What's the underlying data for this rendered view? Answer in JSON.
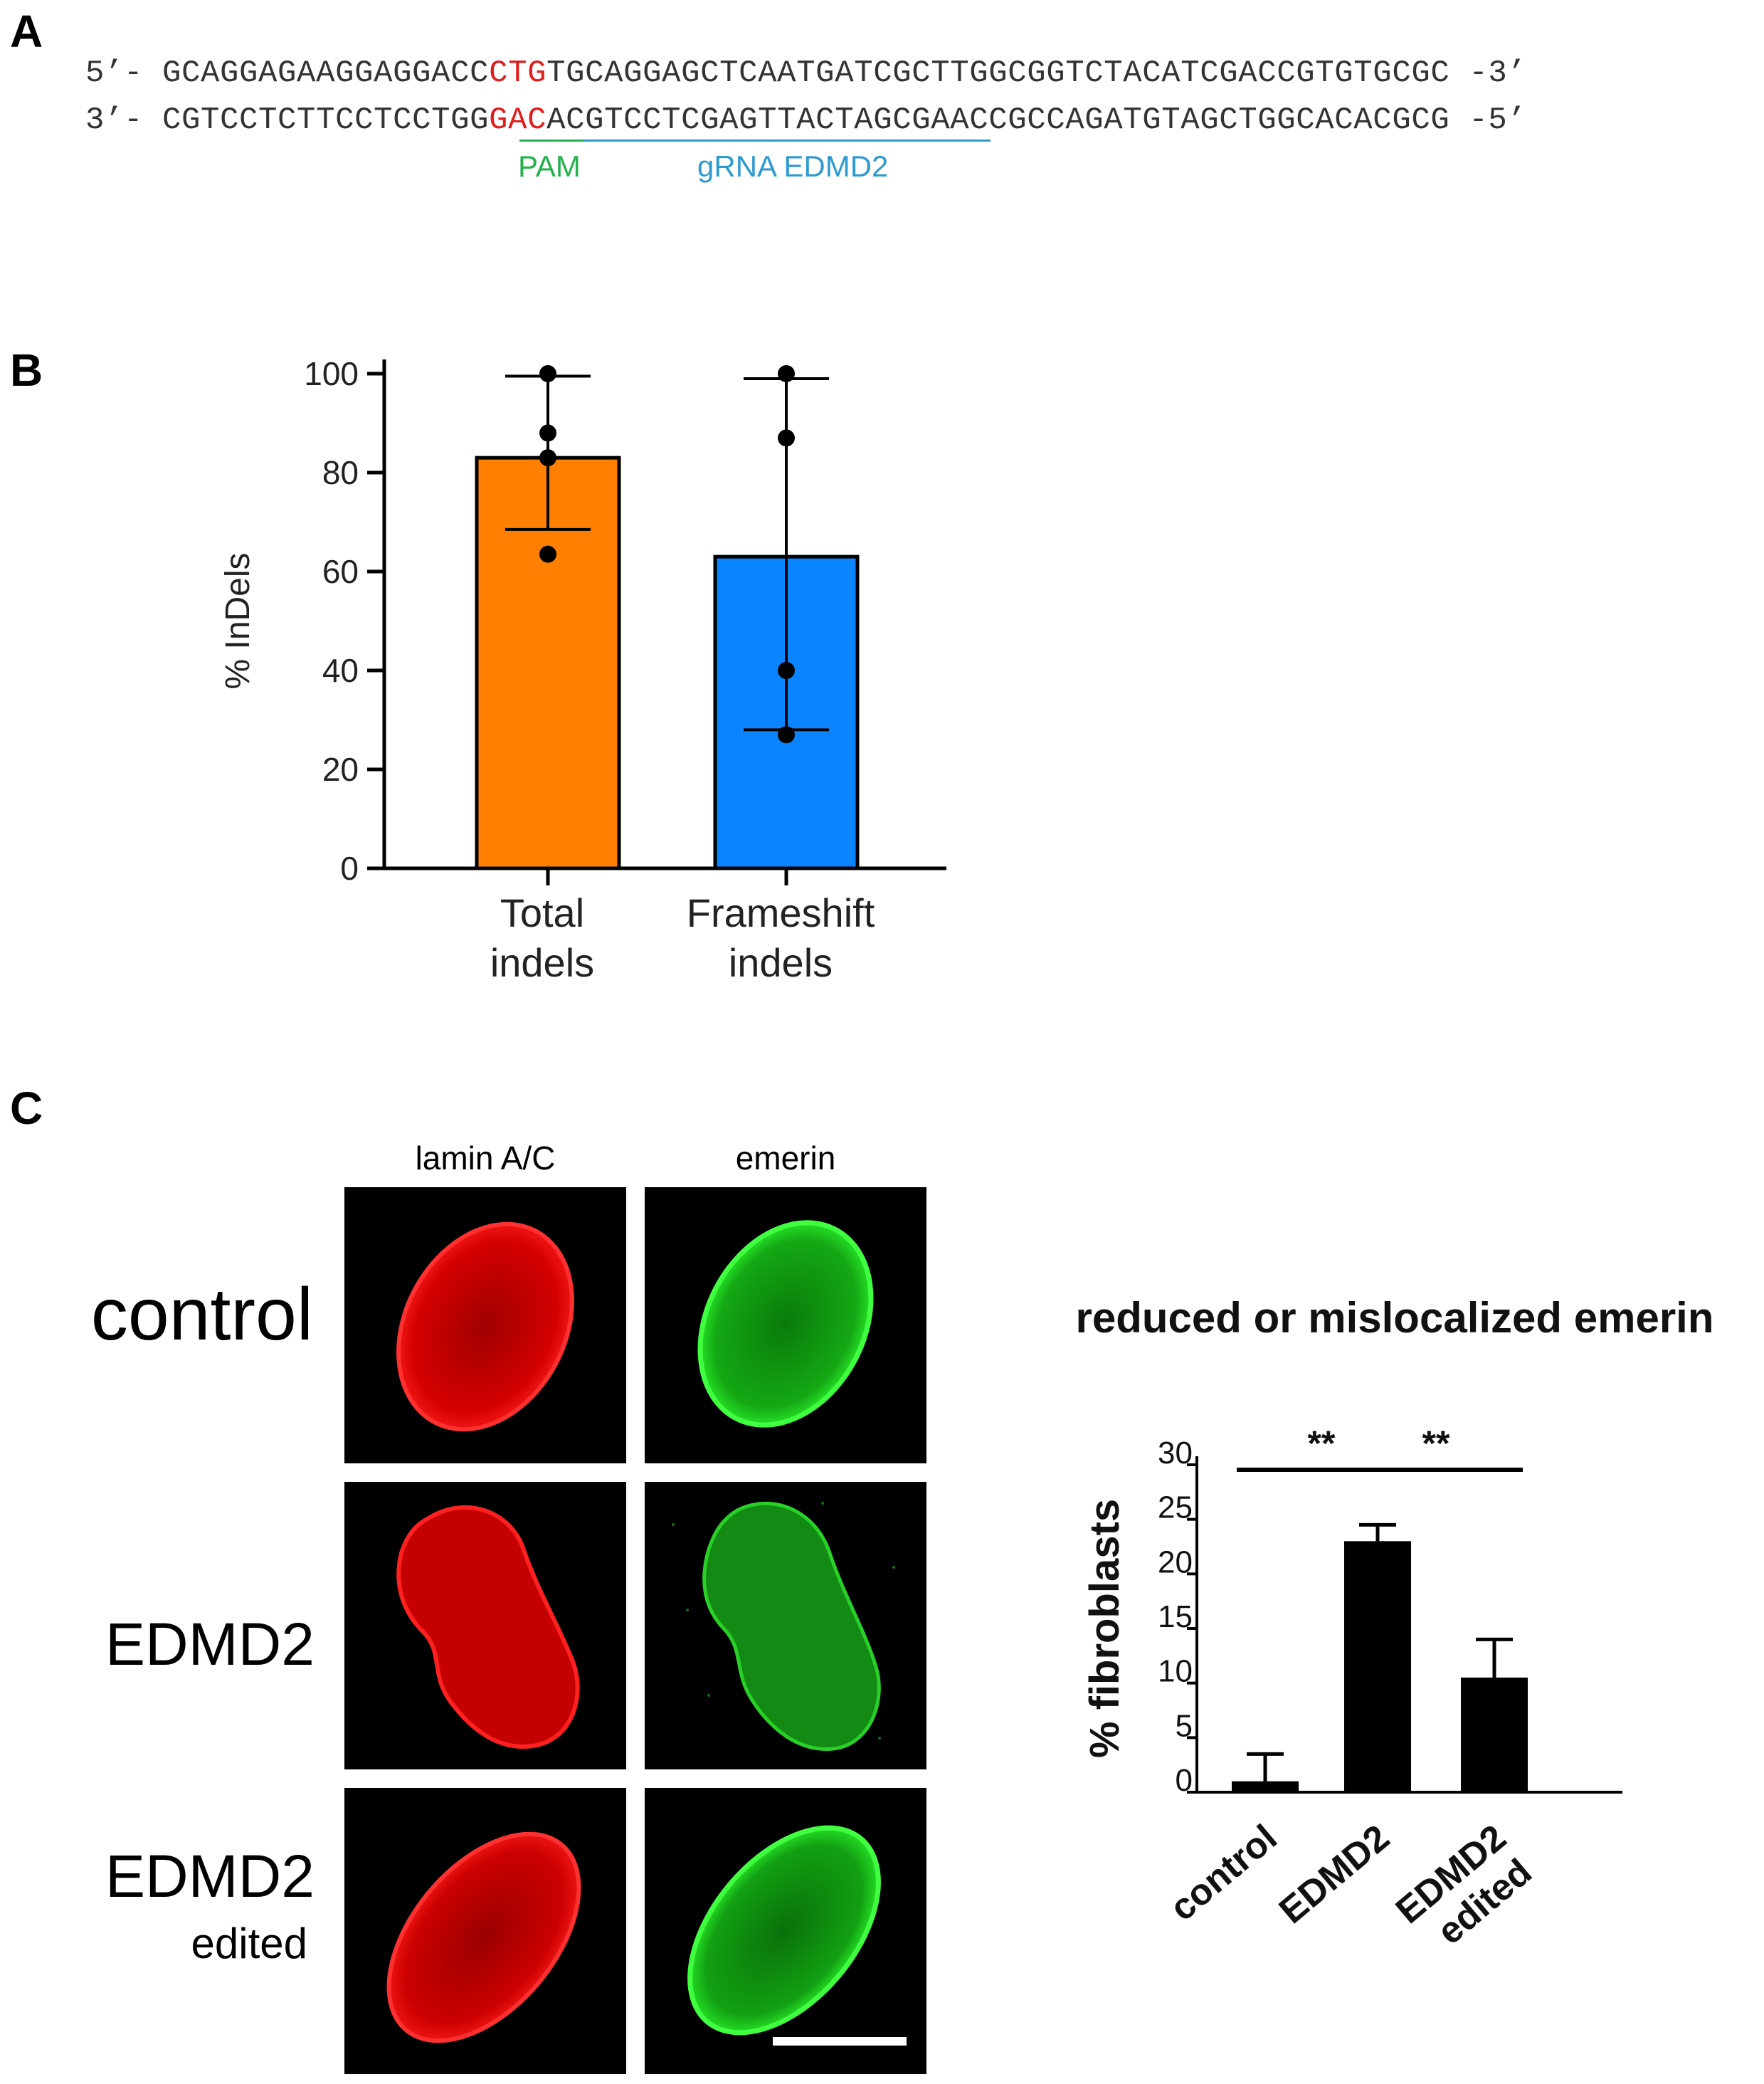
{
  "panels": {
    "a": "A",
    "b": "B",
    "c": "C"
  },
  "panel_a": {
    "line1_prefix": "5’- ",
    "line1_before": "GCAGGAGAAGGAGGACC",
    "line1_red": "CTG",
    "line1_after": "TGCAGGAGCTCAATGATCGCTTGGCGGTCTACATCGACCGTGTGCGC",
    "line1_suffix": " -3’",
    "line2_prefix": "3’- ",
    "line2_before": "CGTCCTCTTCCTCCTGG",
    "line2_red": "GAC",
    "line2_after": "ACGTCCTCGAGTTACTAGCGAACCGCCAGATGTAGCTGGCACACGCG",
    "line2_suffix": " -5’",
    "pam_label": "PAM",
    "grna_label": "gRNA EDMD2",
    "colors": {
      "pam": "#22b14c",
      "grna": "#2e9ad0",
      "highlight": "#e11d1d"
    }
  },
  "chart_data": [
    {
      "type": "bar",
      "ylabel": "% InDels",
      "ylim": [
        0,
        100
      ],
      "yticks": [
        0,
        20,
        40,
        60,
        80,
        100
      ],
      "categories": [
        [
          "Total",
          "indels"
        ],
        [
          "Frameshift",
          "indels"
        ]
      ],
      "values": [
        83,
        63
      ],
      "error_low": [
        68.5,
        28
      ],
      "error_high": [
        99.5,
        99
      ],
      "points": [
        [
          100,
          88,
          83,
          63.5
        ],
        [
          100,
          87,
          40,
          27
        ]
      ],
      "colors": [
        "#ff8000",
        "#0a84ff"
      ]
    },
    {
      "type": "bar",
      "title": "reduced or mislocalized emerin",
      "ylabel": "% fibroblasts",
      "ylim": [
        0,
        30
      ],
      "yticks": [
        0,
        5,
        10,
        15,
        20,
        25,
        30
      ],
      "categories": [
        [
          "control"
        ],
        [
          "EDMD2"
        ],
        [
          "EDMD2",
          "edited"
        ]
      ],
      "values": [
        1,
        23,
        10.5
      ],
      "error_high": [
        3.5,
        24.5,
        14
      ],
      "significance": [
        {
          "from": 0,
          "to": 1,
          "label": "**"
        },
        {
          "from": 1,
          "to": 2,
          "label": "**"
        }
      ],
      "color": "#000000"
    }
  ],
  "panel_c": {
    "columns": [
      "lamin A/C",
      "emerin"
    ],
    "rows": [
      {
        "label": "control",
        "sublabel": ""
      },
      {
        "label": "EDMD2",
        "sublabel": ""
      },
      {
        "label": "EDMD2",
        "sublabel": "edited"
      }
    ],
    "colors": {
      "lamin": "#ff1a1a",
      "emerin": "#22e022"
    }
  }
}
